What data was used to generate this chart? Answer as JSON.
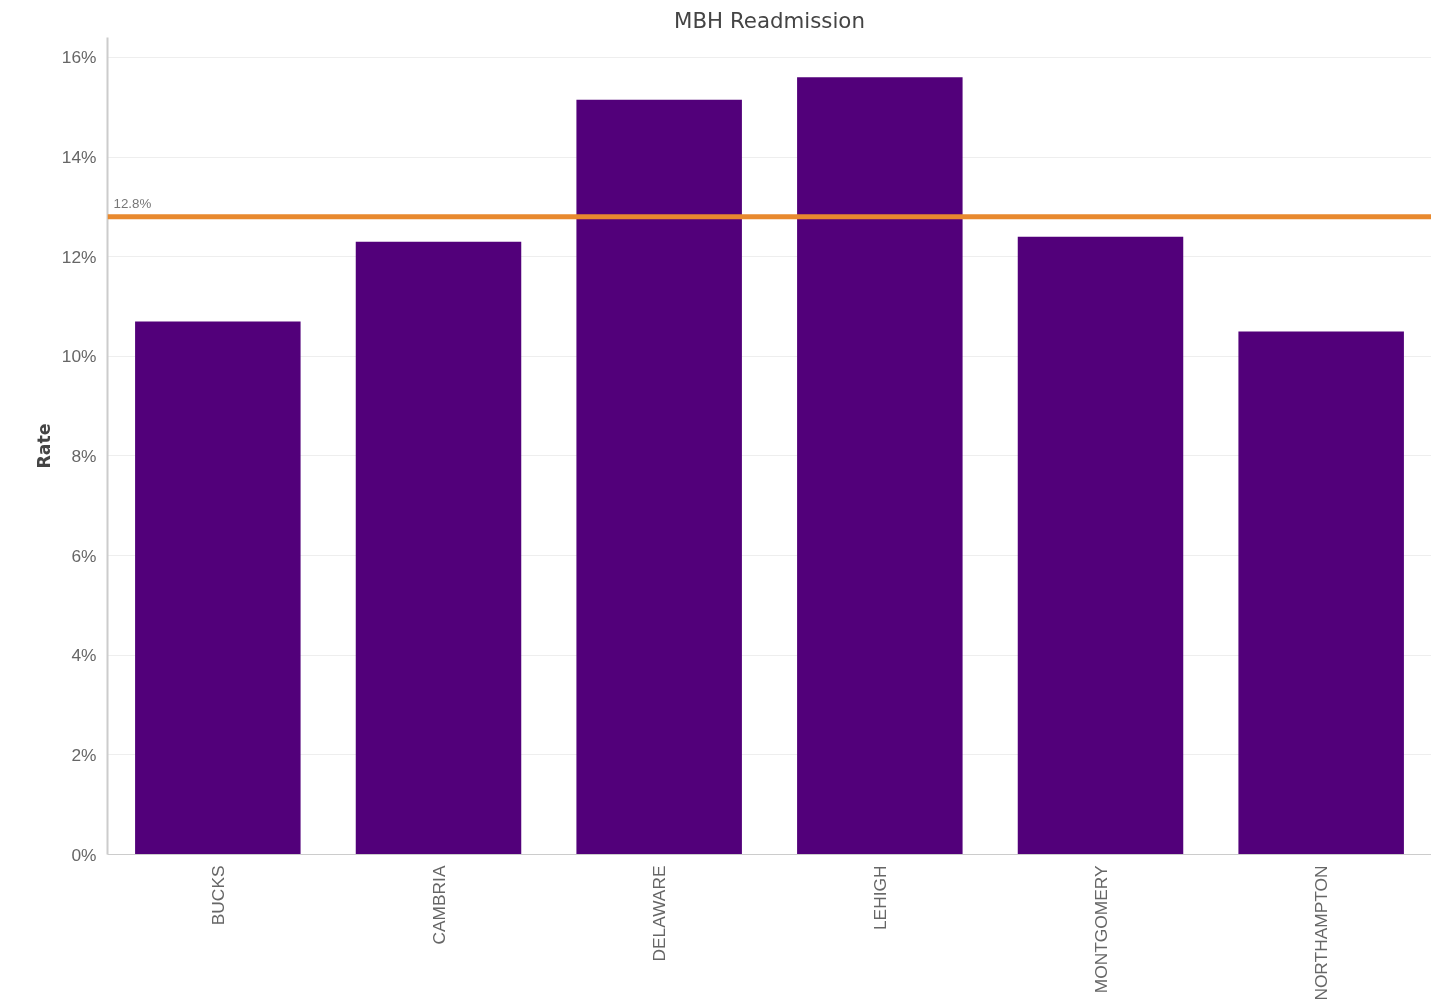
{
  "chart_data": {
    "type": "bar",
    "title": "MBH Readmission",
    "ylabel": "Rate",
    "categories": [
      "BUCKS",
      "CAMBRIA",
      "DELAWARE",
      "LEHIGH",
      "MONTGOMERY",
      "NORTHAMPTON"
    ],
    "values": [
      10.7,
      12.3,
      15.15,
      15.6,
      12.4,
      10.5
    ],
    "color": "#52007a",
    "ylim": [
      0,
      16.4
    ],
    "yticks": [
      {
        "value": 0,
        "label": "0%"
      },
      {
        "value": 2,
        "label": "2%"
      },
      {
        "value": 4,
        "label": "4%"
      },
      {
        "value": 6,
        "label": "6%"
      },
      {
        "value": 8,
        "label": "8%"
      },
      {
        "value": 10,
        "label": "10%"
      },
      {
        "value": 12,
        "label": "12%"
      },
      {
        "value": 14,
        "label": "14%"
      },
      {
        "value": 16,
        "label": "16%"
      }
    ],
    "ref_lines": [
      {
        "axis": "y",
        "value": 12.8,
        "label": "12.8%",
        "color": "#e8892e"
      }
    ],
    "grid": "y"
  }
}
